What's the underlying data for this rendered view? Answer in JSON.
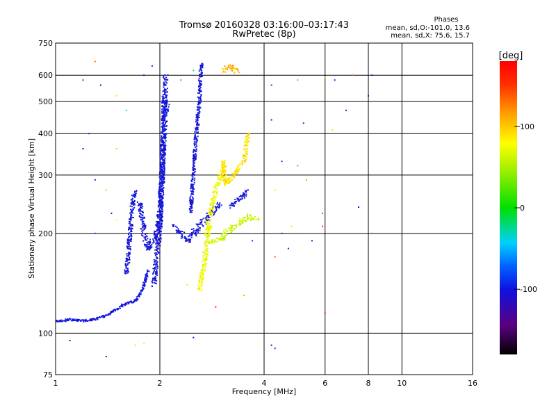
{
  "chart_data": {
    "type": "scatter",
    "title": "Tromsø 20160328 03:16:00–03:17:43",
    "subtitle": "RwPretec (8p)",
    "xlabel": "Frequency [MHz]",
    "ylabel": "Stationary phase Virtual Height [km]",
    "x_scale": "log",
    "y_scale": "log",
    "xlim": [
      1,
      16
    ],
    "ylim": [
      75,
      750
    ],
    "x_ticks": [
      1,
      2,
      4,
      6,
      8,
      10,
      16
    ],
    "y_ticks": [
      75,
      100,
      200,
      300,
      400,
      500,
      600,
      750
    ],
    "grid": true,
    "phases_label": "Phases",
    "stats": [
      "mean, sd,O:-101.0, 13.6",
      "mean, sd,X: 75.6, 15.7"
    ],
    "colorbar": {
      "label": "[deg]",
      "range": [
        -180,
        180
      ],
      "ticks": [
        100,
        0,
        -100
      ]
    },
    "traces": [
      {
        "phase": -110,
        "spread": 0.006,
        "points": [
          [
            1.0,
            109
          ],
          [
            1.05,
            109
          ],
          [
            1.1,
            110
          ],
          [
            1.2,
            109
          ],
          [
            1.3,
            110
          ],
          [
            1.4,
            113
          ],
          [
            1.5,
            118
          ],
          [
            1.55,
            121
          ],
          [
            1.6,
            123
          ],
          [
            1.7,
            125
          ],
          [
            1.75,
            130
          ],
          [
            1.8,
            140
          ],
          [
            1.85,
            155
          ]
        ]
      },
      {
        "phase": -110,
        "spread": 0.01,
        "points": [
          [
            1.6,
            150
          ],
          [
            1.62,
            170
          ],
          [
            1.64,
            200
          ],
          [
            1.66,
            230
          ],
          [
            1.68,
            260
          ],
          [
            1.7,
            270
          ]
        ]
      },
      {
        "phase": -110,
        "spread": 0.012,
        "points": [
          [
            1.75,
            250
          ],
          [
            1.8,
            200
          ],
          [
            1.85,
            180
          ],
          [
            1.9,
            190
          ],
          [
            1.95,
            200
          ],
          [
            2.0,
            230
          ],
          [
            2.03,
            300
          ],
          [
            2.05,
            400
          ],
          [
            2.06,
            480
          ],
          [
            2.08,
            600
          ]
        ]
      },
      {
        "phase": -110,
        "spread": 0.012,
        "points": [
          [
            1.92,
            140
          ],
          [
            1.95,
            160
          ],
          [
            1.98,
            190
          ],
          [
            2.0,
            210
          ],
          [
            2.02,
            260
          ],
          [
            2.04,
            330
          ],
          [
            2.05,
            380
          ],
          [
            2.07,
            450
          ],
          [
            2.1,
            500
          ]
        ]
      },
      {
        "phase": -110,
        "spread": 0.015,
        "points": [
          [
            2.2,
            210
          ],
          [
            2.3,
            200
          ],
          [
            2.4,
            190
          ],
          [
            2.5,
            200
          ],
          [
            2.6,
            210
          ],
          [
            2.7,
            220
          ],
          [
            2.8,
            230
          ],
          [
            2.9,
            240
          ],
          [
            3.0,
            245
          ]
        ]
      },
      {
        "phase": -110,
        "spread": 0.008,
        "points": [
          [
            2.45,
            230
          ],
          [
            2.5,
            300
          ],
          [
            2.55,
            400
          ],
          [
            2.6,
            500
          ],
          [
            2.62,
            600
          ],
          [
            2.64,
            650
          ]
        ]
      },
      {
        "phase": -110,
        "spread": 0.01,
        "points": [
          [
            3.2,
            240
          ],
          [
            3.3,
            250
          ],
          [
            3.4,
            255
          ],
          [
            3.5,
            260
          ],
          [
            3.6,
            270
          ]
        ]
      },
      {
        "phase": 75,
        "spread": 0.012,
        "points": [
          [
            2.6,
            135
          ],
          [
            2.65,
            150
          ],
          [
            2.7,
            170
          ],
          [
            2.75,
            200
          ],
          [
            2.8,
            230
          ],
          [
            2.9,
            270
          ],
          [
            3.0,
            300
          ]
        ]
      },
      {
        "phase": 60,
        "spread": 0.015,
        "points": [
          [
            2.8,
            190
          ],
          [
            3.0,
            190
          ],
          [
            3.1,
            200
          ],
          [
            3.2,
            205
          ],
          [
            3.3,
            210
          ],
          [
            3.4,
            215
          ],
          [
            3.5,
            220
          ],
          [
            3.6,
            225
          ],
          [
            3.8,
            220
          ]
        ]
      },
      {
        "phase": 110,
        "spread": 0.012,
        "points": [
          [
            3.05,
            620
          ],
          [
            3.1,
            630
          ],
          [
            3.2,
            640
          ],
          [
            3.3,
            620
          ],
          [
            3.35,
            610
          ]
        ]
      },
      {
        "phase": 90,
        "spread": 0.01,
        "points": [
          [
            3.0,
            300
          ],
          [
            3.05,
            330
          ],
          [
            3.1,
            280
          ],
          [
            3.5,
            330
          ],
          [
            3.55,
            370
          ],
          [
            3.6,
            400
          ]
        ]
      }
    ],
    "scatter_points": [
      [
        1.3,
        660,
        130
      ],
      [
        1.2,
        580,
        -80
      ],
      [
        1.35,
        560,
        -110
      ],
      [
        1.5,
        520,
        90
      ],
      [
        1.6,
        470,
        -30
      ],
      [
        1.5,
        360,
        50
      ],
      [
        1.25,
        400,
        -100
      ],
      [
        1.2,
        360,
        -110
      ],
      [
        1.3,
        290,
        -120
      ],
      [
        1.4,
        270,
        40
      ],
      [
        1.45,
        230,
        -110
      ],
      [
        1.5,
        220,
        80
      ],
      [
        1.3,
        200,
        -90
      ],
      [
        1.8,
        600,
        -110
      ],
      [
        1.9,
        640,
        -100
      ],
      [
        2.5,
        620,
        -20
      ],
      [
        2.3,
        580,
        -50
      ],
      [
        4.2,
        560,
        -80
      ],
      [
        5.0,
        580,
        120
      ],
      [
        6.0,
        590,
        30
      ],
      [
        6.4,
        580,
        -100
      ],
      [
        6.9,
        470,
        -110
      ],
      [
        7.2,
        600,
        140
      ],
      [
        8.2,
        600,
        -110
      ],
      [
        8.0,
        520,
        -110
      ],
      [
        5.2,
        430,
        -90
      ],
      [
        6.3,
        410,
        60
      ],
      [
        4.2,
        440,
        -120
      ],
      [
        4.5,
        330,
        -100
      ],
      [
        5.0,
        320,
        130
      ],
      [
        5.3,
        290,
        120
      ],
      [
        4.3,
        270,
        90
      ],
      [
        5.9,
        230,
        -60
      ],
      [
        5.9,
        210,
        160
      ],
      [
        7.5,
        240,
        -120
      ],
      [
        8.2,
        200,
        -60
      ],
      [
        4.5,
        200,
        -100
      ],
      [
        4.8,
        210,
        60
      ],
      [
        4.3,
        170,
        140
      ],
      [
        4.7,
        180,
        -100
      ],
      [
        2.9,
        120,
        160
      ],
      [
        3.5,
        130,
        110
      ],
      [
        1.1,
        95,
        -110
      ],
      [
        1.4,
        85,
        -120
      ],
      [
        1.7,
        92,
        60
      ],
      [
        1.8,
        93,
        70
      ],
      [
        2.5,
        97,
        -120
      ],
      [
        4.2,
        92,
        -120
      ],
      [
        4.3,
        90,
        -90
      ],
      [
        6.0,
        115,
        160
      ],
      [
        2.4,
        140,
        60
      ],
      [
        3.7,
        190,
        -100
      ],
      [
        5.5,
        190,
        -130
      ]
    ]
  }
}
